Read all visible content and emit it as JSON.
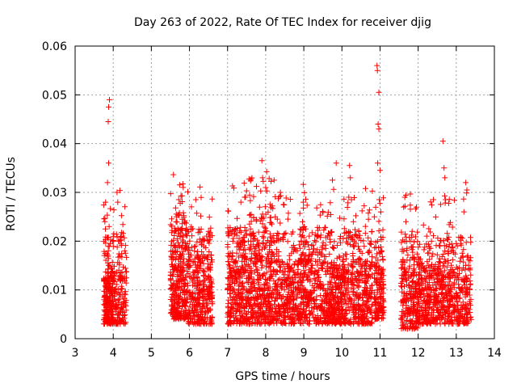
{
  "chart_data": {
    "type": "scatter",
    "title": "Day 263 of 2022, Rate Of TEC Index for receiver djig",
    "xlabel": "GPS time / hours",
    "ylabel": "ROTI / TECUs",
    "xlim": [
      3,
      14
    ],
    "ylim": [
      0,
      0.06
    ],
    "xticks": [
      3,
      4,
      5,
      6,
      7,
      8,
      9,
      10,
      11,
      12,
      13,
      14
    ],
    "yticks": [
      0,
      0.01,
      0.02,
      0.03,
      0.04,
      0.05,
      0.06
    ],
    "xtick_labels": [
      "3",
      "4",
      "5",
      "6",
      "7",
      "8",
      "9",
      "10",
      "11",
      "12",
      "13",
      "14"
    ],
    "ytick_labels": [
      "0",
      "0.01",
      "0.02",
      "0.03",
      "0.04",
      "0.05",
      "0.06"
    ],
    "grid": true,
    "marker": "+",
    "color": "#ff0000",
    "clusters": [
      {
        "x_range": [
          3.75,
          4.0
        ],
        "base": [
          0.003,
          0.015
        ],
        "points": 220
      },
      {
        "x_range": [
          4.0,
          4.35
        ],
        "base": [
          0.003,
          0.016
        ],
        "points": 160
      },
      {
        "x_range": [
          5.5,
          5.95
        ],
        "base": [
          0.004,
          0.02
        ],
        "points": 330
      },
      {
        "x_range": [
          5.95,
          6.6
        ],
        "base": [
          0.003,
          0.017
        ],
        "points": 360
      },
      {
        "x_range": [
          7.0,
          7.55
        ],
        "base": [
          0.003,
          0.017
        ],
        "points": 330
      },
      {
        "x_range": [
          7.55,
          8.2
        ],
        "base": [
          0.003,
          0.02
        ],
        "points": 380
      },
      {
        "x_range": [
          8.2,
          8.9
        ],
        "base": [
          0.003,
          0.016
        ],
        "points": 330
      },
      {
        "x_range": [
          8.9,
          9.6
        ],
        "base": [
          0.003,
          0.017
        ],
        "points": 340
      },
      {
        "x_range": [
          9.6,
          10.15
        ],
        "base": [
          0.003,
          0.016
        ],
        "points": 330
      },
      {
        "x_range": [
          10.15,
          10.8
        ],
        "base": [
          0.003,
          0.016
        ],
        "points": 330
      },
      {
        "x_range": [
          10.85,
          11.1
        ],
        "base": [
          0.004,
          0.015
        ],
        "points": 160
      },
      {
        "x_range": [
          11.55,
          12.05
        ],
        "base": [
          0.002,
          0.016
        ],
        "points": 280
      },
      {
        "x_range": [
          12.05,
          12.65
        ],
        "base": [
          0.003,
          0.015
        ],
        "points": 300
      },
      {
        "x_range": [
          12.65,
          13.4
        ],
        "base": [
          0.003,
          0.015
        ],
        "points": 320
      }
    ],
    "peaks": [
      {
        "x": 3.9,
        "y": 0.049
      },
      {
        "x": 3.88,
        "y": 0.0475
      },
      {
        "x": 3.87,
        "y": 0.0445
      },
      {
        "x": 3.88,
        "y": 0.036
      },
      {
        "x": 3.85,
        "y": 0.032
      },
      {
        "x": 3.8,
        "y": 0.028
      },
      {
        "x": 3.78,
        "y": 0.024
      },
      {
        "x": 4.1,
        "y": 0.03
      },
      {
        "x": 4.12,
        "y": 0.028
      },
      {
        "x": 4.15,
        "y": 0.02
      },
      {
        "x": 4.3,
        "y": 0.018
      },
      {
        "x": 5.72,
        "y": 0.0285
      },
      {
        "x": 5.65,
        "y": 0.024
      },
      {
        "x": 6.5,
        "y": 0.022
      },
      {
        "x": 7.35,
        "y": 0.028
      },
      {
        "x": 7.45,
        "y": 0.029
      },
      {
        "x": 7.9,
        "y": 0.0365
      },
      {
        "x": 7.92,
        "y": 0.033
      },
      {
        "x": 8.0,
        "y": 0.031
      },
      {
        "x": 8.25,
        "y": 0.025
      },
      {
        "x": 8.22,
        "y": 0.0325
      },
      {
        "x": 9.05,
        "y": 0.0225
      },
      {
        "x": 9.75,
        "y": 0.0325
      },
      {
        "x": 9.85,
        "y": 0.036
      },
      {
        "x": 10.2,
        "y": 0.0355
      },
      {
        "x": 10.22,
        "y": 0.033
      },
      {
        "x": 10.25,
        "y": 0.0285
      },
      {
        "x": 10.3,
        "y": 0.024
      },
      {
        "x": 10.92,
        "y": 0.056
      },
      {
        "x": 10.93,
        "y": 0.055
      },
      {
        "x": 10.97,
        "y": 0.0505
      },
      {
        "x": 10.95,
        "y": 0.044
      },
      {
        "x": 10.97,
        "y": 0.043
      },
      {
        "x": 10.94,
        "y": 0.036
      },
      {
        "x": 11.0,
        "y": 0.0345
      },
      {
        "x": 10.98,
        "y": 0.0285
      },
      {
        "x": 11.02,
        "y": 0.026
      },
      {
        "x": 11.65,
        "y": 0.029
      },
      {
        "x": 11.62,
        "y": 0.027
      },
      {
        "x": 11.68,
        "y": 0.024
      },
      {
        "x": 12.4,
        "y": 0.0285
      },
      {
        "x": 12.65,
        "y": 0.0405
      },
      {
        "x": 12.68,
        "y": 0.035
      },
      {
        "x": 12.7,
        "y": 0.033
      },
      {
        "x": 12.72,
        "y": 0.0285
      },
      {
        "x": 13.25,
        "y": 0.032
      },
      {
        "x": 13.28,
        "y": 0.0305
      },
      {
        "x": 13.2,
        "y": 0.026
      }
    ]
  }
}
